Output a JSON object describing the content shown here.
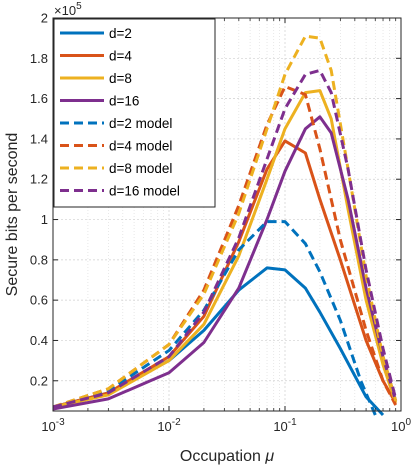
{
  "chart_data": {
    "type": "line",
    "xlabel": "Occupation",
    "xlabel_symbol": "μ",
    "ylabel": "Secure bits per second",
    "y_multiplier": "×10",
    "y_multiplier_exp": "5",
    "x_scale": "log",
    "xlim": [
      0.001,
      1
    ],
    "ylim": [
      0.05,
      2
    ],
    "x_ticks": [
      {
        "value": 0.001,
        "base": "10",
        "exp": "-3"
      },
      {
        "value": 0.01,
        "base": "10",
        "exp": "-2"
      },
      {
        "value": 0.1,
        "base": "10",
        "exp": "-1"
      },
      {
        "value": 1,
        "base": "10",
        "exp": "0"
      }
    ],
    "y_ticks": [
      {
        "value": 0.2,
        "label": "0.2"
      },
      {
        "value": 0.4,
        "label": "0.4"
      },
      {
        "value": 0.6,
        "label": "0.6"
      },
      {
        "value": 0.8,
        "label": "0.8"
      },
      {
        "value": 1.0,
        "label": "1"
      },
      {
        "value": 1.2,
        "label": "1.2"
      },
      {
        "value": 1.4,
        "label": "1.4"
      },
      {
        "value": 1.6,
        "label": "1.6"
      },
      {
        "value": 1.8,
        "label": "1.8"
      },
      {
        "value": 2.0,
        "label": "2"
      }
    ],
    "grid": true,
    "legend_position": "top-left",
    "series": [
      {
        "name": "d=2",
        "color": "#0072BD",
        "style": "solid",
        "x": [
          0.001,
          0.003,
          0.01,
          0.02,
          0.04,
          0.07,
          0.1,
          0.15,
          0.2,
          0.3,
          0.5,
          0.7
        ],
        "y": [
          0.07,
          0.14,
          0.3,
          0.45,
          0.65,
          0.76,
          0.75,
          0.66,
          0.54,
          0.36,
          0.12,
          0.03
        ]
      },
      {
        "name": "d=4",
        "color": "#D95319",
        "style": "solid",
        "x": [
          0.001,
          0.003,
          0.01,
          0.02,
          0.04,
          0.07,
          0.1,
          0.15,
          0.2,
          0.3,
          0.5,
          0.7,
          0.9
        ],
        "y": [
          0.07,
          0.14,
          0.32,
          0.52,
          0.89,
          1.25,
          1.39,
          1.33,
          1.1,
          0.8,
          0.4,
          0.2,
          0.09
        ]
      },
      {
        "name": "d=8",
        "color": "#EDB120",
        "style": "solid",
        "x": [
          0.001,
          0.003,
          0.01,
          0.02,
          0.04,
          0.07,
          0.1,
          0.15,
          0.2,
          0.25,
          0.35,
          0.5,
          0.7,
          0.9
        ],
        "y": [
          0.07,
          0.13,
          0.3,
          0.48,
          0.82,
          1.2,
          1.45,
          1.63,
          1.64,
          1.5,
          1.05,
          0.6,
          0.28,
          0.09
        ]
      },
      {
        "name": "d=16",
        "color": "#7E2F8E",
        "style": "solid",
        "x": [
          0.001,
          0.003,
          0.01,
          0.02,
          0.04,
          0.07,
          0.1,
          0.15,
          0.2,
          0.25,
          0.35,
          0.5,
          0.7,
          0.9
        ],
        "y": [
          0.06,
          0.11,
          0.24,
          0.39,
          0.66,
          1.0,
          1.24,
          1.45,
          1.51,
          1.43,
          1.1,
          0.66,
          0.32,
          0.1
        ]
      },
      {
        "name": "d=2 model",
        "color": "#0072BD",
        "style": "dashed",
        "x": [
          0.001,
          0.003,
          0.01,
          0.02,
          0.04,
          0.07,
          0.1,
          0.15,
          0.2,
          0.3,
          0.45,
          0.6
        ],
        "y": [
          0.07,
          0.15,
          0.35,
          0.55,
          0.85,
          0.99,
          0.99,
          0.88,
          0.74,
          0.5,
          0.2,
          0.03
        ]
      },
      {
        "name": "d=4 model",
        "color": "#D95319",
        "style": "dashed",
        "x": [
          0.001,
          0.003,
          0.01,
          0.02,
          0.04,
          0.07,
          0.1,
          0.15,
          0.2,
          0.3,
          0.5,
          0.7,
          0.9
        ],
        "y": [
          0.07,
          0.16,
          0.38,
          0.65,
          1.07,
          1.47,
          1.66,
          1.62,
          1.35,
          0.9,
          0.45,
          0.2,
          0.08
        ]
      },
      {
        "name": "d=8 model",
        "color": "#EDB120",
        "style": "dashed",
        "x": [
          0.001,
          0.003,
          0.01,
          0.02,
          0.04,
          0.07,
          0.1,
          0.15,
          0.2,
          0.25,
          0.35,
          0.5,
          0.7,
          0.9
        ],
        "y": [
          0.07,
          0.16,
          0.38,
          0.63,
          1.03,
          1.45,
          1.72,
          1.91,
          1.9,
          1.74,
          1.25,
          0.72,
          0.32,
          0.1
        ]
      },
      {
        "name": "d=16 model",
        "color": "#7E2F8E",
        "style": "dashed",
        "x": [
          0.001,
          0.003,
          0.01,
          0.02,
          0.04,
          0.07,
          0.1,
          0.15,
          0.2,
          0.25,
          0.35,
          0.5,
          0.7,
          0.9
        ],
        "y": [
          0.07,
          0.14,
          0.32,
          0.54,
          0.91,
          1.3,
          1.55,
          1.72,
          1.74,
          1.63,
          1.25,
          0.75,
          0.36,
          0.11
        ]
      }
    ]
  }
}
